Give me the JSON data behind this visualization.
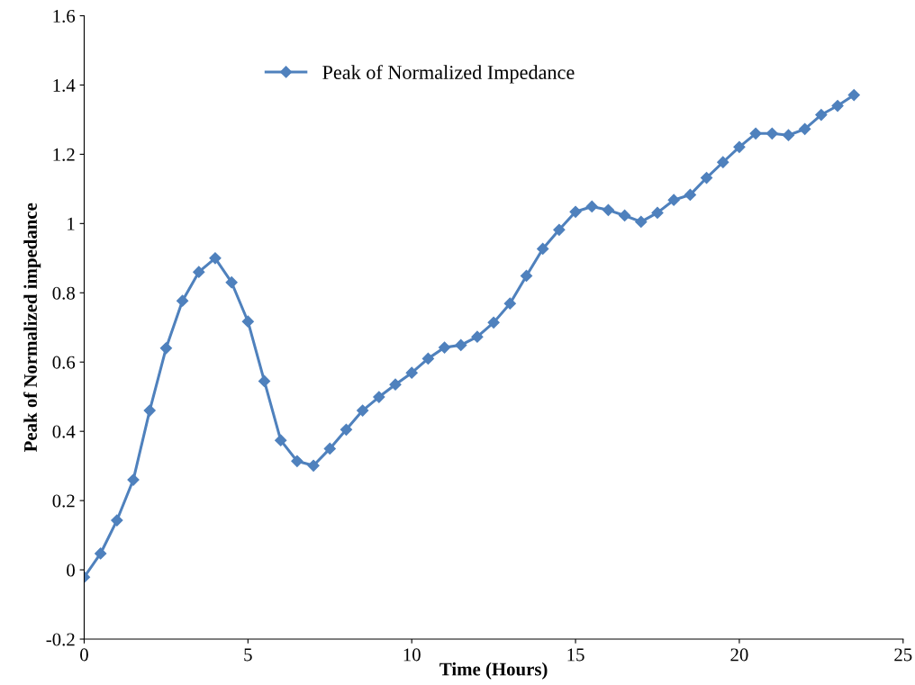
{
  "chart_data": {
    "type": "line",
    "xlabel": "Time (Hours)",
    "ylabel": "Peak of Normalized impedance",
    "x": [
      0,
      0.5,
      1,
      1.5,
      2,
      2.5,
      3,
      3.5,
      4,
      4.5,
      5,
      5.5,
      6,
      6.5,
      7,
      7.5,
      8,
      8.5,
      9,
      9.5,
      10,
      10.5,
      11,
      11.5,
      12,
      12.5,
      13,
      13.5,
      14,
      14.5,
      15,
      15.5,
      16,
      16.5,
      17,
      17.5,
      18,
      18.5,
      19,
      19.5,
      20,
      20.5,
      21,
      21.5,
      22,
      22.5,
      23,
      23.5
    ],
    "series": [
      {
        "name": "Peak of Normalized Impedance",
        "color": "#4f81bd",
        "values": [
          -0.021,
          0.047,
          0.143,
          0.26,
          0.46,
          0.64,
          0.777,
          0.86,
          0.9,
          0.83,
          0.717,
          0.545,
          0.374,
          0.314,
          0.301,
          0.35,
          0.405,
          0.46,
          0.499,
          0.535,
          0.569,
          0.61,
          0.642,
          0.649,
          0.673,
          0.714,
          0.769,
          0.849,
          0.927,
          0.982,
          1.034,
          1.049,
          1.039,
          1.023,
          1.005,
          1.031,
          1.068,
          1.083,
          1.132,
          1.177,
          1.221,
          1.26,
          1.26,
          1.255,
          1.273,
          1.314,
          1.34,
          1.371
        ]
      }
    ],
    "xlim": [
      0,
      25
    ],
    "xticks": [
      0,
      5,
      10,
      15,
      20,
      25
    ],
    "ylim": [
      -0.2,
      1.6
    ],
    "yticks": [
      -0.2,
      {
        "value": 0,
        "label": "0"
      },
      0.2,
      0.4,
      0.6,
      0.8,
      {
        "value": 1,
        "label": "1"
      },
      1.2,
      1.4,
      1.6
    ],
    "grid": false,
    "legend": "top left",
    "marker": "diamond",
    "line_style": "solid"
  }
}
